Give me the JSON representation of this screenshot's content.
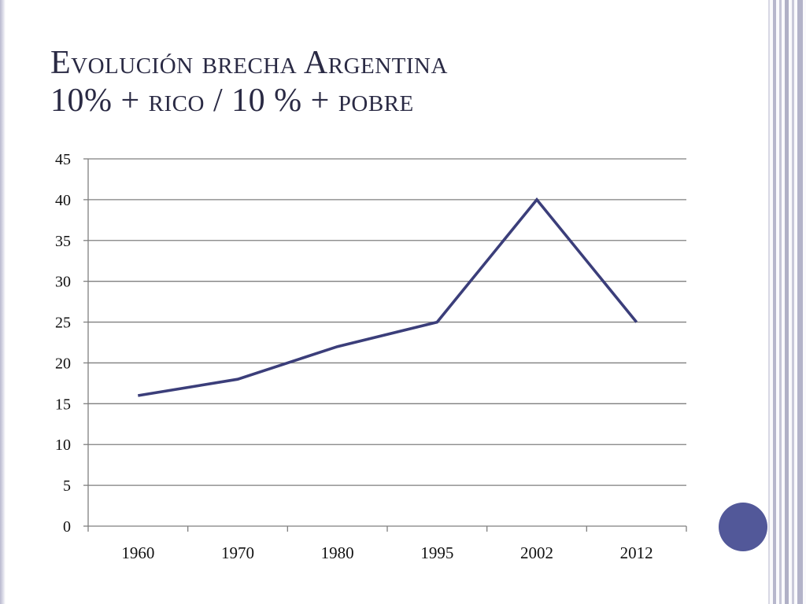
{
  "slide": {
    "title_line1": "Evolución brecha Argentina",
    "title_line2": "10% + rico / 10 % + pobre"
  },
  "colors": {
    "line": "#3b3e7a",
    "grid": "#7f7f7f",
    "accent_dot": "#525899",
    "title": "#2a2a44"
  },
  "chart_data": {
    "type": "line",
    "title": "",
    "xlabel": "",
    "ylabel": "",
    "categories": [
      "1960",
      "1970",
      "1980",
      "1995",
      "2002",
      "2012"
    ],
    "series": [
      {
        "values": [
          16,
          18,
          22,
          25,
          40,
          25
        ]
      }
    ],
    "ylim": [
      0,
      45
    ],
    "yticks": [
      0,
      5,
      10,
      15,
      20,
      25,
      30,
      35,
      40,
      45
    ],
    "grid": true,
    "legend": "none"
  }
}
